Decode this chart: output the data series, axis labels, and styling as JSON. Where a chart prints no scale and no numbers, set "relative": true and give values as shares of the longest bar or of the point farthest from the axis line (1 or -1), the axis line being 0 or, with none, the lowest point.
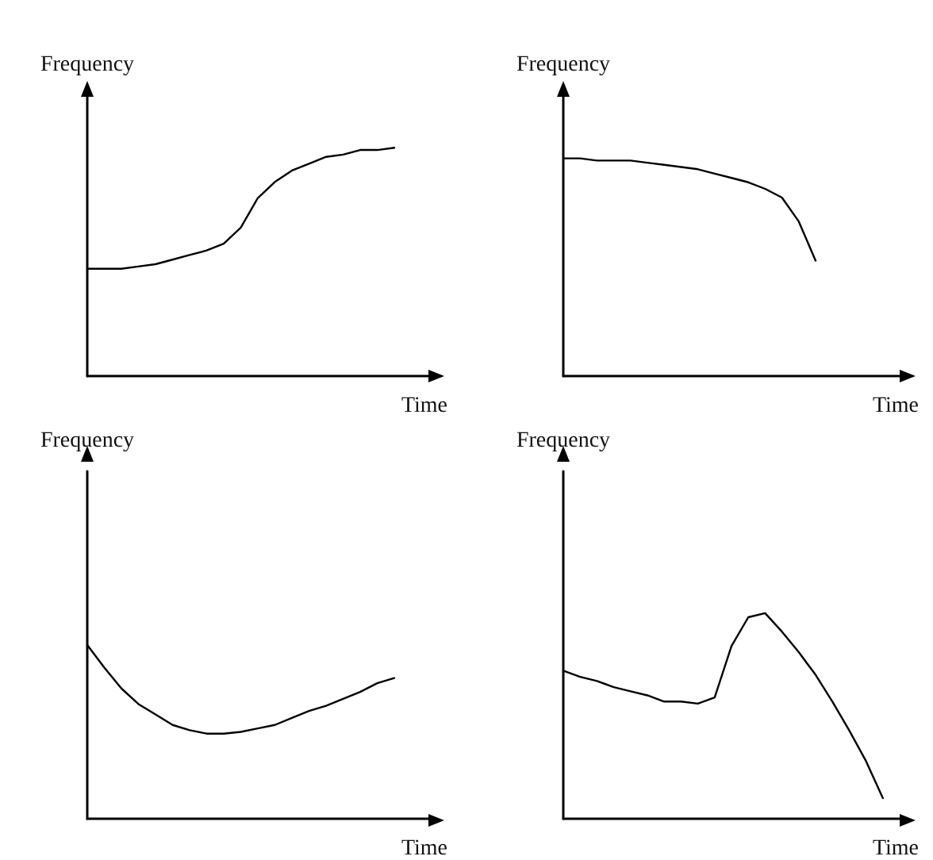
{
  "chart_data": [
    {
      "type": "line",
      "relative": true,
      "xlabel": "Time",
      "ylabel": "Frequency",
      "marker": "none",
      "line_style": "solid",
      "categories": [
        null,
        null,
        null,
        null,
        null,
        null,
        null,
        null,
        null,
        null,
        null,
        null,
        null,
        null,
        null,
        null,
        null,
        null,
        null,
        null,
        null
      ],
      "series": [
        {
          "color": "#000000",
          "values": [
            0.47,
            0.47,
            0.47,
            0.48,
            0.49,
            0.51,
            0.53,
            0.55,
            0.58,
            0.65,
            0.78,
            0.85,
            0.9,
            0.93,
            0.96,
            0.97,
            0.99,
            0.99,
            1,
            null,
            null
          ]
        }
      ]
    },
    {
      "type": "line",
      "relative": true,
      "xlabel": "Time",
      "ylabel": "Frequency",
      "marker": "none",
      "line_style": "solid",
      "categories": [
        null,
        null,
        null,
        null,
        null,
        null,
        null,
        null,
        null,
        null,
        null,
        null,
        null,
        null,
        null,
        null,
        null,
        null,
        null,
        null,
        null
      ],
      "series": [
        {
          "color": "#000000",
          "values": [
            1,
            1,
            0.99,
            0.99,
            0.99,
            0.98,
            0.97,
            0.96,
            0.95,
            0.93,
            0.91,
            0.89,
            0.86,
            0.82,
            0.71,
            0.53,
            null,
            null,
            null,
            null,
            null
          ]
        }
      ]
    },
    {
      "type": "line",
      "relative": true,
      "xlabel": "Time",
      "ylabel": "Frequency",
      "marker": "none",
      "line_style": "solid",
      "categories": [
        null,
        null,
        null,
        null,
        null,
        null,
        null,
        null,
        null,
        null,
        null,
        null,
        null,
        null,
        null,
        null,
        null,
        null,
        null,
        null,
        null
      ],
      "series": [
        {
          "color": "#000000",
          "values": [
            1,
            0.87,
            0.75,
            0.66,
            0.6,
            0.54,
            0.51,
            0.49,
            0.49,
            0.5,
            0.52,
            0.54,
            0.58,
            0.62,
            0.65,
            0.69,
            0.73,
            0.78,
            0.81,
            null,
            null
          ]
        }
      ]
    },
    {
      "type": "line",
      "relative": true,
      "xlabel": "Time",
      "ylabel": "Frequency",
      "marker": "none",
      "line_style": "solid",
      "categories": [
        null,
        null,
        null,
        null,
        null,
        null,
        null,
        null,
        null,
        null,
        null,
        null,
        null,
        null,
        null,
        null,
        null,
        null,
        null,
        null,
        null
      ],
      "series": [
        {
          "color": "#000000",
          "values": [
            0.72,
            0.69,
            0.67,
            0.64,
            0.62,
            0.6,
            0.57,
            0.57,
            0.56,
            0.59,
            0.84,
            0.98,
            1,
            0.91,
            0.81,
            0.7,
            0.57,
            0.43,
            0.28,
            0.1,
            null
          ]
        }
      ]
    }
  ]
}
